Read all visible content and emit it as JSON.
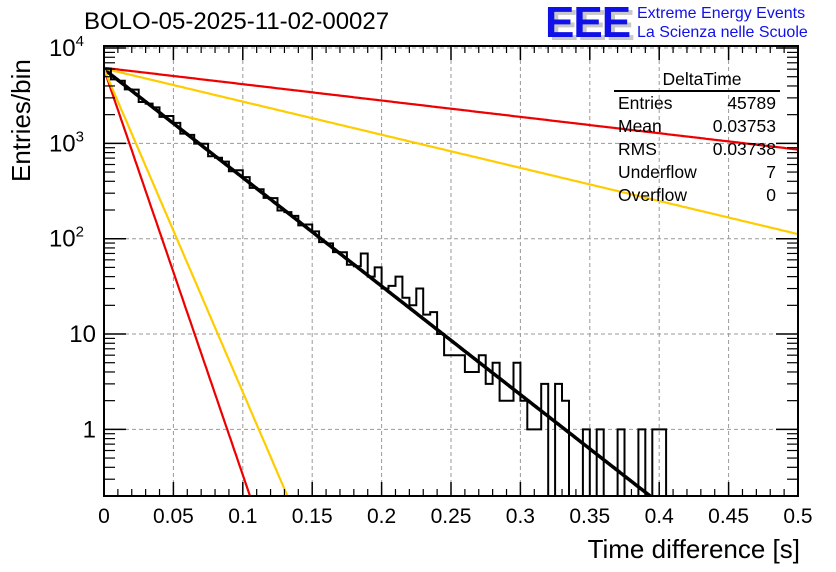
{
  "title": "BOLO-05-2025-11-02-00027",
  "logo": {
    "mark": "EEE",
    "line1": "Extreme Energy Events",
    "line2": "La Scienza nelle Scuole",
    "color": "#1010e8"
  },
  "stats_box": {
    "title": "DeltaTime",
    "rows": [
      {
        "label": "Entries",
        "value": "45789"
      },
      {
        "label": "Mean",
        "value": "0.03753"
      },
      {
        "label": "RMS",
        "value": "0.03738"
      },
      {
        "label": "Underflow",
        "value": "7"
      },
      {
        "label": "Overflow",
        "value": "0"
      }
    ]
  },
  "chart_data": {
    "type": "histogram",
    "title": "BOLO-05-2025-11-02-00027",
    "xlabel": "Time difference [s]",
    "ylabel": "Entries/bin",
    "xlim": [
      0,
      0.5
    ],
    "ylim": [
      0.2,
      10000
    ],
    "yscale": "log",
    "grid": true,
    "x_ticks": [
      "0",
      "0.05",
      "0.1",
      "0.15",
      "0.2",
      "0.25",
      "0.3",
      "0.35",
      "0.4",
      "0.45",
      "0.5"
    ],
    "x_tick_values": [
      0,
      0.05,
      0.1,
      0.15,
      0.2,
      0.25,
      0.3,
      0.35,
      0.4,
      0.45,
      0.5
    ],
    "y_ticks": [
      {
        "value": 10000,
        "base": "10",
        "exp": "4"
      },
      {
        "value": 1000,
        "base": "10",
        "exp": "3"
      },
      {
        "value": 100,
        "base": "10",
        "exp": "2"
      },
      {
        "value": 10,
        "base": "10",
        "exp": ""
      },
      {
        "value": 1,
        "base": "1",
        "exp": ""
      }
    ],
    "histogram": {
      "name": "DeltaTime",
      "bin_width": 0.005,
      "color": "#000000",
      "bins_start": 0,
      "tail_counts": [
        {
          "x": 0.185,
          "y": 70
        },
        {
          "x": 0.19,
          "y": 40
        },
        {
          "x": 0.195,
          "y": 50
        },
        {
          "x": 0.2,
          "y": 30
        },
        {
          "x": 0.205,
          "y": 32
        },
        {
          "x": 0.21,
          "y": 40
        },
        {
          "x": 0.215,
          "y": 24
        },
        {
          "x": 0.22,
          "y": 20
        },
        {
          "x": 0.225,
          "y": 30
        },
        {
          "x": 0.23,
          "y": 16
        },
        {
          "x": 0.235,
          "y": 17
        },
        {
          "x": 0.24,
          "y": 10
        },
        {
          "x": 0.245,
          "y": 6
        },
        {
          "x": 0.25,
          "y": 6
        },
        {
          "x": 0.255,
          "y": 6
        },
        {
          "x": 0.26,
          "y": 4
        },
        {
          "x": 0.265,
          "y": 4
        },
        {
          "x": 0.27,
          "y": 6
        },
        {
          "x": 0.275,
          "y": 3
        },
        {
          "x": 0.28,
          "y": 5
        },
        {
          "x": 0.285,
          "y": 2
        },
        {
          "x": 0.29,
          "y": 2
        },
        {
          "x": 0.295,
          "y": 5
        },
        {
          "x": 0.3,
          "y": 2
        },
        {
          "x": 0.305,
          "y": 1
        },
        {
          "x": 0.31,
          "y": 1
        },
        {
          "x": 0.315,
          "y": 3
        },
        {
          "x": 0.32,
          "y": 0
        },
        {
          "x": 0.325,
          "y": 3
        },
        {
          "x": 0.33,
          "y": 2
        },
        {
          "x": 0.335,
          "y": 0
        },
        {
          "x": 0.34,
          "y": 0
        },
        {
          "x": 0.345,
          "y": 1
        },
        {
          "x": 0.35,
          "y": 0
        },
        {
          "x": 0.355,
          "y": 1
        },
        {
          "x": 0.36,
          "y": 0
        },
        {
          "x": 0.365,
          "y": 0
        },
        {
          "x": 0.37,
          "y": 1
        },
        {
          "x": 0.375,
          "y": 0
        },
        {
          "x": 0.38,
          "y": 0
        },
        {
          "x": 0.385,
          "y": 1
        },
        {
          "x": 0.39,
          "y": 0
        },
        {
          "x": 0.395,
          "y": 1
        },
        {
          "x": 0.4,
          "y": 1
        },
        {
          "x": 0.405,
          "y": 0
        }
      ]
    },
    "series": [
      {
        "name": "fit",
        "type": "exponential",
        "amplitude": 6000,
        "slope": -26.2,
        "color": "#000000"
      },
      {
        "name": "red-steep",
        "type": "exponential",
        "amplitude": 6000,
        "slope": -98,
        "color": "#ee0000"
      },
      {
        "name": "yellow-steep",
        "type": "exponential",
        "amplitude": 6000,
        "slope": -78,
        "color": "#ffcc00"
      },
      {
        "name": "red-shallow",
        "type": "exponential",
        "amplitude": 6200,
        "slope": -3.95,
        "color": "#ee0000"
      },
      {
        "name": "yellow-shallow",
        "type": "exponential",
        "amplitude": 6100,
        "slope": -8.0,
        "color": "#ffcc00"
      }
    ]
  }
}
